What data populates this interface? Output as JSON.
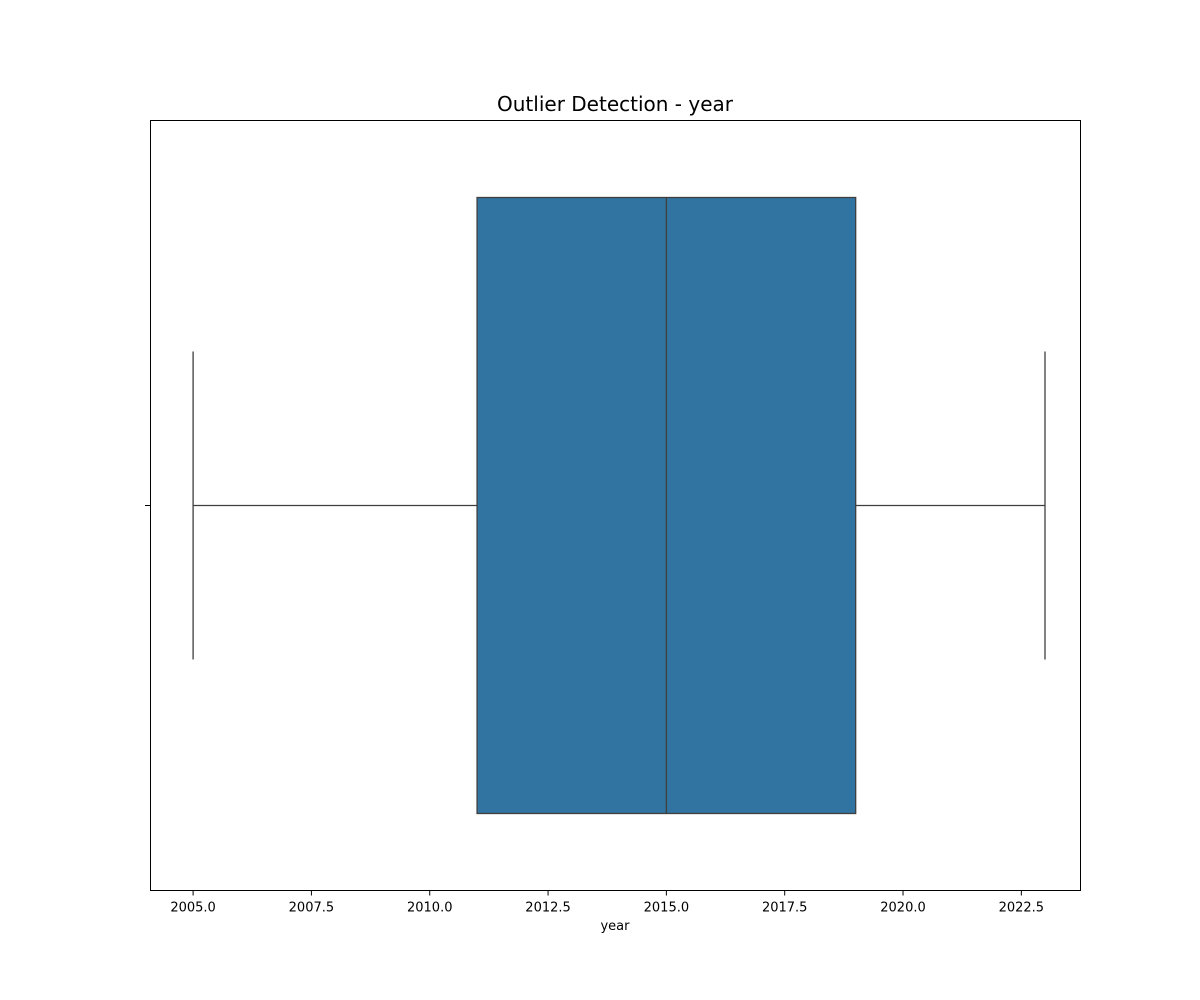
{
  "chart_data": {
    "type": "box",
    "title": "Outlier Detection - year",
    "xlabel": "year",
    "ylabel": "",
    "orientation": "horizontal",
    "xlim": [
      2004.1,
      2023.75
    ],
    "ticks": [
      2005.0,
      2007.5,
      2010.0,
      2012.5,
      2015.0,
      2017.5,
      2020.0,
      2022.5
    ],
    "tick_labels": [
      "2005.0",
      "2007.5",
      "2010.0",
      "2012.5",
      "2015.0",
      "2017.5",
      "2020.0",
      "2022.5"
    ],
    "box": {
      "whisker_low": 2005,
      "q1": 2011,
      "median": 2015,
      "q3": 2019,
      "whisker_high": 2023,
      "outliers": []
    },
    "grid": false,
    "colors": {
      "box_fill": "#3274a1",
      "lines": "#3f3f3f",
      "axes": "#000000"
    }
  }
}
